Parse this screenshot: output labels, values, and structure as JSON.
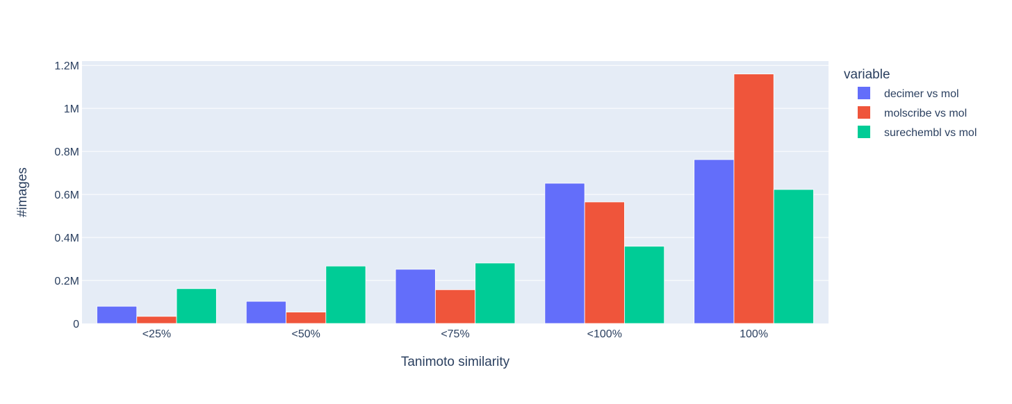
{
  "chart_data": {
    "type": "bar",
    "xlabel": "Tanimoto similarity",
    "ylabel": "#images",
    "categories": [
      "<25%",
      "<50%",
      "<75%",
      "<100%",
      "100%"
    ],
    "series": [
      {
        "name": "decimer vs mol",
        "color": "#636efa",
        "values": [
          80000,
          103000,
          252000,
          652000,
          762000
        ]
      },
      {
        "name": "molscribe vs mol",
        "color": "#ef553b",
        "values": [
          33000,
          53000,
          157000,
          565000,
          1160000
        ]
      },
      {
        "name": "surechembl vs mol",
        "color": "#00cc96",
        "values": [
          162000,
          267000,
          281000,
          359000,
          623000
        ]
      }
    ],
    "ylim": [
      0,
      1220000
    ],
    "yticks": [
      0,
      200000,
      400000,
      600000,
      800000,
      1000000,
      1200000
    ],
    "ytick_labels": [
      "0",
      "0.2M",
      "0.4M",
      "0.6M",
      "0.8M",
      "1M",
      "1.2M"
    ],
    "grid": true,
    "legend": {
      "title": "variable",
      "placement": "right"
    }
  }
}
